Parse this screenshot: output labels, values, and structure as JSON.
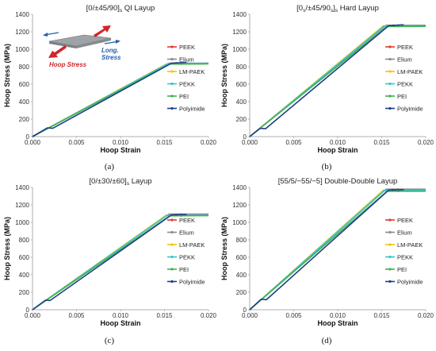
{
  "series_styles": [
    {
      "name": "PEEK",
      "color": "#e03c31"
    },
    {
      "name": "Elium",
      "color": "#8c8c8c"
    },
    {
      "name": "LM-PAEK",
      "color": "#f5c400"
    },
    {
      "name": "PEKK",
      "color": "#33c5d6"
    },
    {
      "name": "PEI",
      "color": "#3fb34f"
    },
    {
      "name": "Polyimide",
      "color": "#1f3f8a"
    }
  ],
  "inset": {
    "hoop_label": "Hoop Stress",
    "long_label": "Long. Stress",
    "hoop_color": "#d0262c",
    "long_color": "#1f5fad"
  },
  "chart_data": [
    {
      "type": "line",
      "panel": "(a)",
      "title": "[0/±45/90]s QI Layup",
      "title_main": "[0/±45/90]",
      "title_sub": "s",
      "title_rest": " QI Layup",
      "xlabel": "Hoop Strain",
      "ylabel": "Hoop Stress (MPa)",
      "xlim": [
        0,
        0.02
      ],
      "ylim": [
        0,
        1400
      ],
      "xticks": [
        "0.000",
        "0.005",
        "0.010",
        "0.015",
        "0.020"
      ],
      "yticks": [
        "0",
        "200",
        "400",
        "600",
        "800",
        "1000",
        "1200",
        "1400"
      ],
      "grid": false,
      "legend_position": "right",
      "series": [
        {
          "name": "PEEK",
          "x": [
            0,
            0.0153,
            0.02
          ],
          "y": [
            0,
            830,
            840
          ]
        },
        {
          "name": "Elium",
          "x": [
            0,
            0.0155,
            0.02
          ],
          "y": [
            0,
            840,
            840
          ]
        },
        {
          "name": "LM-PAEK",
          "x": [
            0,
            0.0152,
            0.02
          ],
          "y": [
            0,
            830,
            835
          ]
        },
        {
          "name": "PEKK",
          "x": [
            0,
            0.0154,
            0.02
          ],
          "y": [
            0,
            835,
            838
          ]
        },
        {
          "name": "PEI",
          "x": [
            0,
            0.0156,
            0.02
          ],
          "y": [
            0,
            830,
            832
          ]
        },
        {
          "name": "Polyimide",
          "x": [
            0,
            0.0017,
            0.0023,
            0.0158,
            0.0175
          ],
          "y": [
            0,
            100,
            95,
            840,
            850
          ]
        }
      ]
    },
    {
      "type": "line",
      "panel": "(b)",
      "title": "[0s/±45/90s]s Hard Layup",
      "title_main": "[0",
      "title_sub": "s",
      "title_rest": "/±45/90",
      "title_sub2": "s",
      "title_rest2": "]",
      "title_sub3": "s",
      "title_rest3": " Hard Layup",
      "xlabel": "Hoop Strain",
      "ylabel": "Hoop Stress (MPa)",
      "xlim": [
        0,
        0.02
      ],
      "ylim": [
        0,
        1400
      ],
      "xticks": [
        "0.000",
        "0.005",
        "0.010",
        "0.015",
        "0.020"
      ],
      "yticks": [
        "0",
        "200",
        "400",
        "600",
        "800",
        "1000",
        "1200",
        "1400"
      ],
      "grid": false,
      "legend_position": "right",
      "series": [
        {
          "name": "PEEK",
          "x": [
            0,
            0.0152,
            0.02
          ],
          "y": [
            0,
            1265,
            1270
          ]
        },
        {
          "name": "Elium",
          "x": [
            0,
            0.0155,
            0.02
          ],
          "y": [
            0,
            1275,
            1275
          ]
        },
        {
          "name": "LM-PAEK",
          "x": [
            0,
            0.0151,
            0.02
          ],
          "y": [
            0,
            1260,
            1265
          ]
        },
        {
          "name": "PEKK",
          "x": [
            0,
            0.0153,
            0.02
          ],
          "y": [
            0,
            1265,
            1268
          ]
        },
        {
          "name": "PEI",
          "x": [
            0,
            0.0156,
            0.02
          ],
          "y": [
            0,
            1260,
            1262
          ]
        },
        {
          "name": "Polyimide",
          "x": [
            0,
            0.0012,
            0.0018,
            0.0158,
            0.0175
          ],
          "y": [
            0,
            95,
            90,
            1270,
            1280
          ]
        }
      ]
    },
    {
      "type": "line",
      "panel": "(c)",
      "title": "[0/±30/±60]s Layup",
      "title_main": "[0/±30/±60]",
      "title_sub": "s",
      "title_rest": " Layup",
      "xlabel": "Hoop Strain",
      "ylabel": "Hoop Stress (MPa)",
      "xlim": [
        0,
        0.02
      ],
      "ylim": [
        0,
        1400
      ],
      "xticks": [
        "0.000",
        "0.005",
        "0.010",
        "0.015",
        "0.020"
      ],
      "yticks": [
        "0",
        "200",
        "400",
        "600",
        "800",
        "1000",
        "1200",
        "1400"
      ],
      "grid": false,
      "legend_position": "right",
      "series": [
        {
          "name": "PEEK",
          "x": [
            0,
            0.0152,
            0.02
          ],
          "y": [
            0,
            1080,
            1085
          ]
        },
        {
          "name": "Elium",
          "x": [
            0,
            0.0155,
            0.02
          ],
          "y": [
            0,
            1095,
            1095
          ]
        },
        {
          "name": "LM-PAEK",
          "x": [
            0,
            0.0151,
            0.02
          ],
          "y": [
            0,
            1075,
            1080
          ]
        },
        {
          "name": "PEKK",
          "x": [
            0,
            0.0153,
            0.02
          ],
          "y": [
            0,
            1080,
            1082
          ]
        },
        {
          "name": "PEI",
          "x": [
            0,
            0.0156,
            0.02
          ],
          "y": [
            0,
            1075,
            1076
          ]
        },
        {
          "name": "Polyimide",
          "x": [
            0,
            0.0015,
            0.002,
            0.0158,
            0.0175
          ],
          "y": [
            0,
            110,
            105,
            1085,
            1090
          ]
        }
      ]
    },
    {
      "type": "line",
      "panel": "(d)",
      "title": "[55/5/−55/−5] Double-Double Layup",
      "title_main": "[55/5/−55/−5] Double-Double Layup",
      "xlabel": "Hoop Strain",
      "ylabel": "Hoop Stress (MPa)",
      "xlim": [
        0,
        0.02
      ],
      "ylim": [
        0,
        1400
      ],
      "xticks": [
        "0.000",
        "0.005",
        "0.010",
        "0.015",
        "0.020"
      ],
      "yticks": [
        "0",
        "200",
        "400",
        "600",
        "800",
        "1000",
        "1200",
        "1400"
      ],
      "grid": false,
      "legend_position": "right",
      "series": [
        {
          "name": "PEEK",
          "x": [
            0,
            0.0152,
            0.02
          ],
          "y": [
            0,
            1365,
            1370
          ]
        },
        {
          "name": "Elium",
          "x": [
            0,
            0.0155,
            0.02
          ],
          "y": [
            0,
            1380,
            1380
          ]
        },
        {
          "name": "LM-PAEK",
          "x": [
            0,
            0.0151,
            0.02
          ],
          "y": [
            0,
            1360,
            1362
          ]
        },
        {
          "name": "PEKK",
          "x": [
            0,
            0.0153,
            0.02
          ],
          "y": [
            0,
            1365,
            1366
          ]
        },
        {
          "name": "PEI",
          "x": [
            0,
            0.0156,
            0.02
          ],
          "y": [
            0,
            1355,
            1356
          ]
        },
        {
          "name": "Polyimide",
          "x": [
            0,
            0.0013,
            0.0019,
            0.0158,
            0.0175
          ],
          "y": [
            0,
            120,
            115,
            1370,
            1375
          ]
        }
      ]
    }
  ]
}
